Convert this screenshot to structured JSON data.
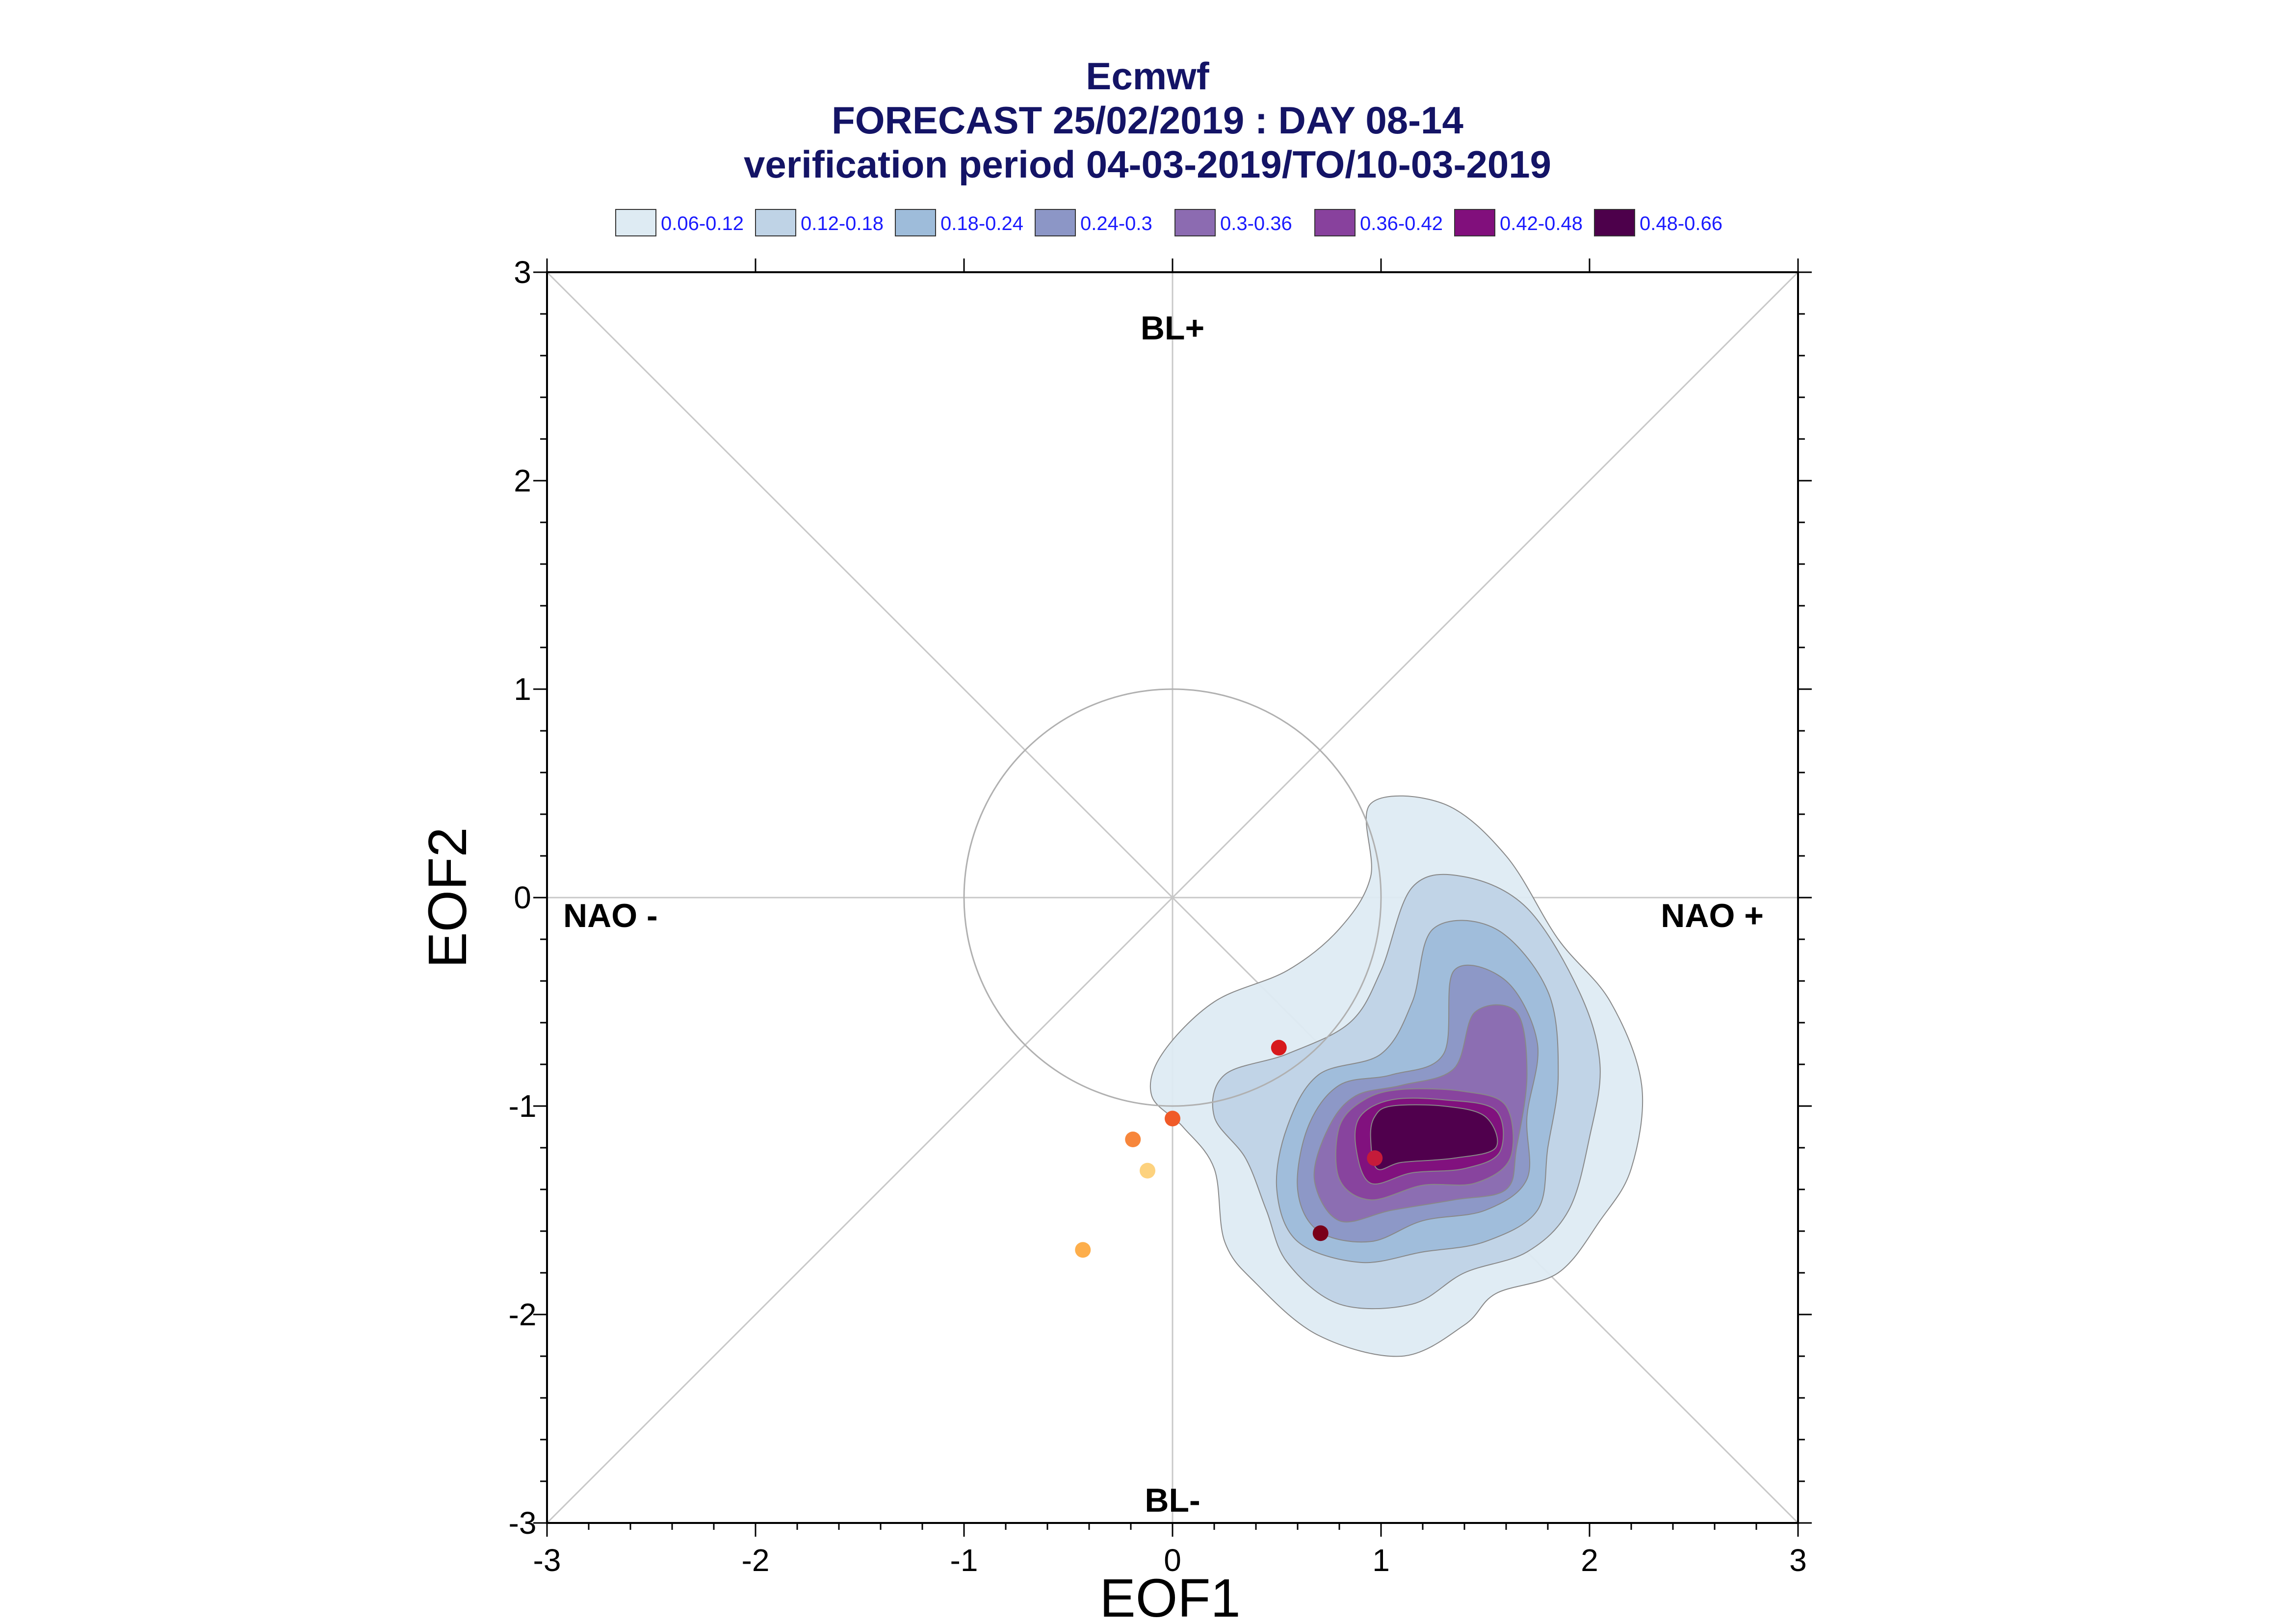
{
  "chart_data": {
    "type": "contour-scatter",
    "title": "Ecmwf",
    "subtitle_1": "FORECAST 25/02/2019 : DAY 08-14",
    "subtitle_2": "verification period 04-03-2019/TO/10-03-2019",
    "xlabel": "EOF1",
    "ylabel": "EOF2",
    "xlim": [
      -3,
      3
    ],
    "ylim": [
      -3,
      3
    ],
    "xticks": [
      "-3",
      "-2",
      "-1",
      "0",
      "1",
      "2",
      "3"
    ],
    "yticks": [
      "3",
      "2",
      "1",
      "0",
      "-1",
      "-2",
      "-3"
    ],
    "regime_labels": {
      "top": "BL+",
      "bottom": "BL-",
      "left": "NAO -",
      "right": "NAO +"
    },
    "legend": [
      {
        "label": "0.06-0.12",
        "color": "#deebf3"
      },
      {
        "label": "0.12-0.18",
        "color": "#bfd3e6"
      },
      {
        "label": "0.18-0.24",
        "color": "#9ebcda"
      },
      {
        "label": "0.24-0.3",
        "color": "#8c96c6"
      },
      {
        "label": "0.3-0.36",
        "color": "#8c6bb1"
      },
      {
        "label": "0.36-0.42",
        "color": "#88419d"
      },
      {
        "label": "0.42-0.48",
        "color": "#810f7c"
      },
      {
        "label": "0.48-0.66",
        "color": "#4d004b"
      }
    ],
    "density_levels": [
      {
        "level": "0.06-0.12",
        "color": "#deebf3",
        "contour": [
          [
            0.95,
            0.45
          ],
          [
            1.3,
            0.45
          ],
          [
            1.6,
            0.2
          ],
          [
            1.85,
            -0.2
          ],
          [
            2.1,
            -0.5
          ],
          [
            2.25,
            -0.9
          ],
          [
            2.2,
            -1.3
          ],
          [
            2.05,
            -1.55
          ],
          [
            1.85,
            -1.8
          ],
          [
            1.55,
            -1.9
          ],
          [
            1.4,
            -2.05
          ],
          [
            1.1,
            -2.2
          ],
          [
            0.7,
            -2.1
          ],
          [
            0.4,
            -1.85
          ],
          [
            0.25,
            -1.65
          ],
          [
            0.2,
            -1.3
          ],
          [
            0.05,
            -1.1
          ],
          [
            -0.1,
            -0.95
          ],
          [
            -0.05,
            -0.75
          ],
          [
            0.2,
            -0.5
          ],
          [
            0.55,
            -0.35
          ],
          [
            0.8,
            -0.15
          ],
          [
            0.95,
            0.1
          ]
        ]
      },
      {
        "level": "0.12-0.18",
        "color": "#bfd3e6",
        "contour": [
          [
            1.15,
            0.05
          ],
          [
            1.4,
            0.1
          ],
          [
            1.7,
            -0.05
          ],
          [
            1.95,
            -0.45
          ],
          [
            2.05,
            -0.8
          ],
          [
            2.0,
            -1.15
          ],
          [
            1.9,
            -1.5
          ],
          [
            1.7,
            -1.7
          ],
          [
            1.4,
            -1.8
          ],
          [
            1.15,
            -1.95
          ],
          [
            0.8,
            -1.95
          ],
          [
            0.55,
            -1.75
          ],
          [
            0.45,
            -1.5
          ],
          [
            0.35,
            -1.25
          ],
          [
            0.2,
            -1.05
          ],
          [
            0.25,
            -0.85
          ],
          [
            0.55,
            -0.75
          ],
          [
            0.85,
            -0.6
          ],
          [
            1.0,
            -0.35
          ]
        ]
      },
      {
        "level": "0.18-0.24",
        "color": "#9ebcda",
        "contour": [
          [
            1.25,
            -0.15
          ],
          [
            1.55,
            -0.15
          ],
          [
            1.8,
            -0.45
          ],
          [
            1.85,
            -0.85
          ],
          [
            1.8,
            -1.2
          ],
          [
            1.75,
            -1.5
          ],
          [
            1.5,
            -1.65
          ],
          [
            1.2,
            -1.7
          ],
          [
            0.9,
            -1.75
          ],
          [
            0.6,
            -1.65
          ],
          [
            0.5,
            -1.4
          ],
          [
            0.55,
            -1.1
          ],
          [
            0.7,
            -0.85
          ],
          [
            1.0,
            -0.75
          ],
          [
            1.15,
            -0.5
          ]
        ]
      },
      {
        "level": "0.24-0.3",
        "color": "#8c96c6",
        "contour": [
          [
            1.35,
            -0.35
          ],
          [
            1.6,
            -0.4
          ],
          [
            1.75,
            -0.7
          ],
          [
            1.7,
            -1.05
          ],
          [
            1.7,
            -1.35
          ],
          [
            1.5,
            -1.5
          ],
          [
            1.2,
            -1.55
          ],
          [
            0.95,
            -1.65
          ],
          [
            0.7,
            -1.6
          ],
          [
            0.6,
            -1.4
          ],
          [
            0.65,
            -1.1
          ],
          [
            0.8,
            -0.9
          ],
          [
            1.05,
            -0.85
          ],
          [
            1.3,
            -0.75
          ]
        ]
      },
      {
        "level": "0.3-0.36",
        "color": "#8c6bb1",
        "contour": [
          [
            1.45,
            -0.55
          ],
          [
            1.65,
            -0.55
          ],
          [
            1.7,
            -0.85
          ],
          [
            1.65,
            -1.2
          ],
          [
            1.6,
            -1.4
          ],
          [
            1.35,
            -1.45
          ],
          [
            1.05,
            -1.5
          ],
          [
            0.8,
            -1.55
          ],
          [
            0.68,
            -1.35
          ],
          [
            0.75,
            -1.1
          ],
          [
            0.88,
            -0.95
          ],
          [
            1.1,
            -0.9
          ],
          [
            1.35,
            -0.82
          ]
        ]
      },
      {
        "level": "0.36-0.42",
        "color": "#88419d",
        "contour": [
          [
            1.1,
            -0.92
          ],
          [
            1.4,
            -0.93
          ],
          [
            1.6,
            -1.0
          ],
          [
            1.62,
            -1.25
          ],
          [
            1.45,
            -1.37
          ],
          [
            1.2,
            -1.38
          ],
          [
            0.95,
            -1.45
          ],
          [
            0.8,
            -1.35
          ],
          [
            0.8,
            -1.1
          ],
          [
            0.92,
            -0.97
          ]
        ]
      },
      {
        "level": "0.42-0.48",
        "color": "#810f7c",
        "contour": [
          [
            1.05,
            -0.97
          ],
          [
            1.3,
            -0.97
          ],
          [
            1.55,
            -1.02
          ],
          [
            1.57,
            -1.22
          ],
          [
            1.4,
            -1.3
          ],
          [
            1.15,
            -1.32
          ],
          [
            0.95,
            -1.37
          ],
          [
            0.88,
            -1.2
          ],
          [
            0.9,
            -1.05
          ]
        ]
      },
      {
        "level": "0.48-0.66",
        "color": "#4d004b",
        "contour": [
          [
            1.05,
            -1.0
          ],
          [
            1.3,
            -1.0
          ],
          [
            1.5,
            -1.05
          ],
          [
            1.55,
            -1.2
          ],
          [
            1.35,
            -1.25
          ],
          [
            1.1,
            -1.27
          ],
          [
            0.98,
            -1.3
          ],
          [
            0.95,
            -1.15
          ],
          [
            0.97,
            -1.05
          ]
        ]
      }
    ],
    "points": [
      {
        "x": 0.51,
        "y": -0.72,
        "color": "#d7191c"
      },
      {
        "x": 0.0,
        "y": -1.06,
        "color": "#f05a28"
      },
      {
        "x": -0.19,
        "y": -1.16,
        "color": "#f7863b"
      },
      {
        "x": -0.12,
        "y": -1.31,
        "color": "#fdd27e"
      },
      {
        "x": -0.43,
        "y": -1.69,
        "color": "#fdae4b"
      },
      {
        "x": 0.97,
        "y": -1.25,
        "color": "#c51b3a"
      },
      {
        "x": 0.71,
        "y": -1.61,
        "color": "#7a0019"
      }
    ],
    "unit_circle_radius": 1,
    "grid": false
  }
}
